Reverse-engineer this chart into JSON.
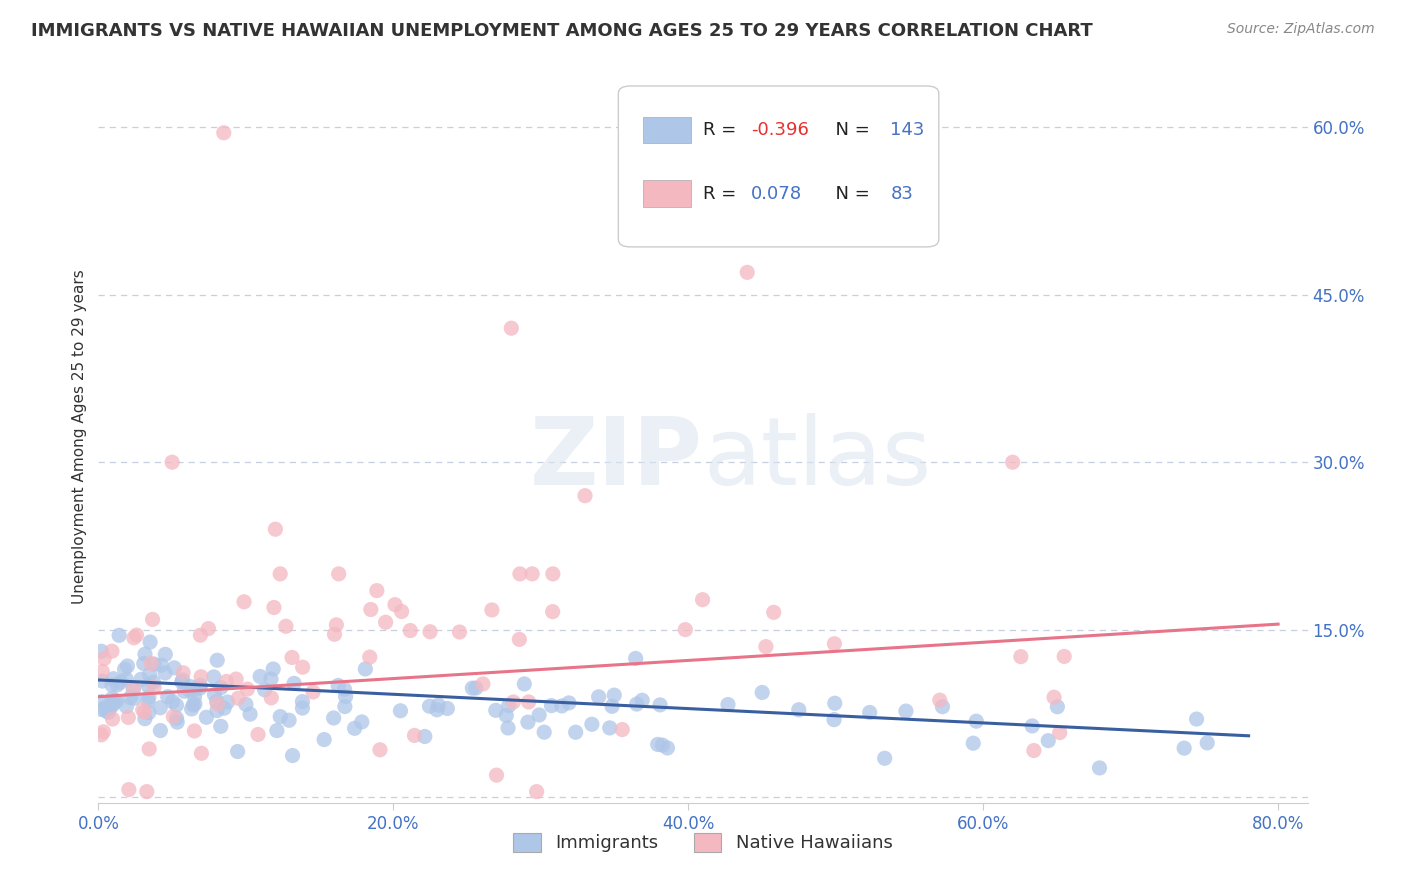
{
  "title": "IMMIGRANTS VS NATIVE HAWAIIAN UNEMPLOYMENT AMONG AGES 25 TO 29 YEARS CORRELATION CHART",
  "source": "Source: ZipAtlas.com",
  "ylabel": "Unemployment Among Ages 25 to 29 years",
  "xlim": [
    0.0,
    0.82
  ],
  "ylim": [
    -0.005,
    0.65
  ],
  "xticks": [
    0.0,
    0.2,
    0.4,
    0.6,
    0.8
  ],
  "xticklabels": [
    "0.0%",
    "20.0%",
    "40.0%",
    "60.0%",
    "80.0%"
  ],
  "ytick_positions": [
    0.0,
    0.15,
    0.3,
    0.45,
    0.6
  ],
  "yticklabels_right": [
    "",
    "15.0%",
    "30.0%",
    "45.0%",
    "60.0%"
  ],
  "grid_color": "#c8cfe0",
  "background_color": "#ffffff",
  "legend_R1": "-0.396",
  "legend_N1": "143",
  "legend_R2": "0.078",
  "legend_N2": "83",
  "immigrant_color": "#aec6e8",
  "native_color": "#f4b8c1",
  "immigrant_line_color": "#3a5fa0",
  "native_line_color": "#e8748a",
  "title_color": "#333333",
  "ylabel_color": "#333333",
  "tick_color": "#4472c4",
  "source_color": "#888888"
}
